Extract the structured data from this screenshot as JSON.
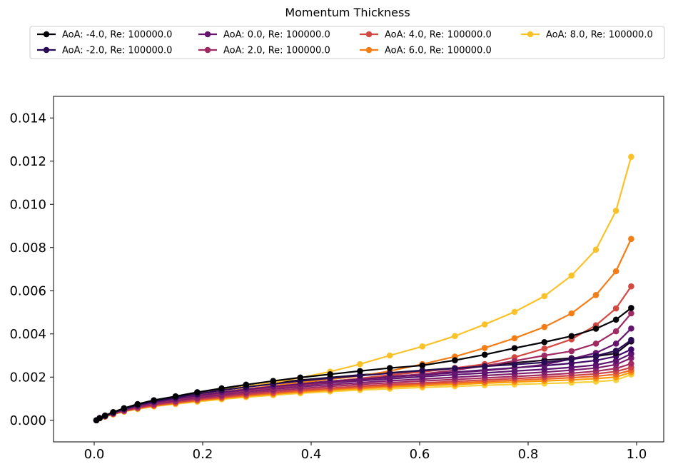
{
  "chart_data": {
    "type": "line",
    "title": "Momentum Thickness",
    "xlabel": "",
    "ylabel": "",
    "xlim": [
      -0.075,
      1.05
    ],
    "ylim": [
      -0.001,
      0.015
    ],
    "xticks": [
      "0.0",
      "0.2",
      "0.4",
      "0.6",
      "0.8",
      "1.0"
    ],
    "yticks": [
      "0.000",
      "0.002",
      "0.004",
      "0.006",
      "0.008",
      "0.010",
      "0.012",
      "0.014"
    ],
    "grid": false,
    "legend_position": "top-center, 4 columns",
    "x": [
      0.004,
      0.01,
      0.02,
      0.035,
      0.055,
      0.08,
      0.11,
      0.15,
      0.19,
      0.235,
      0.28,
      0.33,
      0.38,
      0.435,
      0.49,
      0.545,
      0.605,
      0.665,
      0.72,
      0.775,
      0.83,
      0.88,
      0.925,
      0.962,
      0.99
    ],
    "series": [
      {
        "name": "AoA: -4.0, Re: 100000.0",
        "color": "#000004",
        "values": [
          0.0,
          0.0001,
          0.00022,
          0.00038,
          0.00056,
          0.00075,
          0.00093,
          0.00111,
          0.0013,
          0.00148,
          0.00165,
          0.00182,
          0.00198,
          0.00213,
          0.00228,
          0.00242,
          0.00254,
          0.00278,
          0.00304,
          0.00334,
          0.00362,
          0.0039,
          0.00424,
          0.00466,
          0.0052
        ]
      },
      {
        "name": "AoA: -2.0, Re: 100000.0",
        "color": "#280b53",
        "values": [
          0.0,
          0.0001,
          0.00021,
          0.00036,
          0.00053,
          0.00071,
          0.00088,
          0.00105,
          0.00122,
          0.00139,
          0.00154,
          0.00168,
          0.00182,
          0.00195,
          0.00207,
          0.00218,
          0.0023,
          0.0024,
          0.0025,
          0.00258,
          0.00268,
          0.00282,
          0.00298,
          0.00322,
          0.00372
        ]
      },
      {
        "name": "AoA: 0.0, Re: 100000.0",
        "color": "#65156e",
        "values": [
          0.0,
          0.0001,
          0.0002,
          0.00034,
          0.0005,
          0.00067,
          0.00083,
          0.00099,
          0.00114,
          0.00129,
          0.00143,
          0.00156,
          0.00168,
          0.00179,
          0.0019,
          0.002,
          0.0021,
          0.0022,
          0.0023,
          0.00242,
          0.00258,
          0.00284,
          0.00312,
          0.00355,
          0.00425
        ]
      },
      {
        "name": "AoA: 2.0, Re: 100000.0",
        "color": "#9f2a63",
        "values": [
          0.0,
          0.0001,
          0.0002,
          0.00033,
          0.00048,
          0.00064,
          0.0008,
          0.00095,
          0.0011,
          0.00124,
          0.00137,
          0.0015,
          0.00163,
          0.00176,
          0.00189,
          0.002,
          0.00214,
          0.00232,
          0.00252,
          0.00275,
          0.003,
          0.0032,
          0.00355,
          0.00412,
          0.00495
        ]
      },
      {
        "name": "AoA: 4.0, Re: 100000.0",
        "color": "#d44842",
        "values": [
          0.0,
          0.0001,
          0.0002,
          0.00033,
          0.00048,
          0.00064,
          0.0008,
          0.00096,
          0.00111,
          0.00126,
          0.0014,
          0.00154,
          0.00167,
          0.0018,
          0.00194,
          0.0021,
          0.00224,
          0.00242,
          0.0026,
          0.00292,
          0.00332,
          0.00375,
          0.0044,
          0.00518,
          0.0062
        ]
      },
      {
        "name": "AoA: 6.0, Re: 100000.0",
        "color": "#f57d15",
        "values": [
          0.0,
          0.0001,
          0.0002,
          0.00034,
          0.0005,
          0.00066,
          0.00083,
          0.00099,
          0.00115,
          0.0013,
          0.00145,
          0.0016,
          0.00175,
          0.0019,
          0.00205,
          0.00228,
          0.0026,
          0.00295,
          0.00335,
          0.0038,
          0.00432,
          0.00495,
          0.0058,
          0.0069,
          0.0084
        ]
      },
      {
        "name": "AoA: 8.0, Re: 100000.0",
        "color": "#fac228",
        "values": [
          0.0,
          0.0001,
          0.0002,
          0.00035,
          0.00052,
          0.00069,
          0.00087,
          0.00105,
          0.00122,
          0.0014,
          0.00157,
          0.00174,
          0.00197,
          0.00225,
          0.0026,
          0.003,
          0.00342,
          0.0039,
          0.00444,
          0.00502,
          0.00575,
          0.0067,
          0.0079,
          0.0097,
          0.0122
        ]
      },
      {
        "name": "",
        "color": "#16071c",
        "values": [
          0.0,
          0.0001,
          0.00021,
          0.00037,
          0.00054,
          0.00073,
          0.0009,
          0.00107,
          0.00125,
          0.00142,
          0.00158,
          0.00173,
          0.00186,
          0.00198,
          0.0021,
          0.0022,
          0.00231,
          0.00242,
          0.00254,
          0.00266,
          0.00278,
          0.00288,
          0.00296,
          0.0031,
          0.00365
        ]
      },
      {
        "name": "",
        "color": "#420a68",
        "values": [
          0.0,
          0.0001,
          0.0002,
          0.00035,
          0.00051,
          0.00069,
          0.00085,
          0.00101,
          0.00117,
          0.00131,
          0.00145,
          0.00158,
          0.0017,
          0.00181,
          0.00192,
          0.00203,
          0.00213,
          0.00223,
          0.00233,
          0.00243,
          0.00253,
          0.00264,
          0.00277,
          0.00296,
          0.00328
        ]
      },
      {
        "name": "",
        "color": "#5c126e",
        "values": [
          0.0,
          0.0001,
          0.0002,
          0.00034,
          0.00049,
          0.00066,
          0.00081,
          0.00096,
          0.00111,
          0.00125,
          0.00138,
          0.00151,
          0.00162,
          0.00173,
          0.00183,
          0.00192,
          0.00202,
          0.00211,
          0.00219,
          0.00228,
          0.00236,
          0.00245,
          0.00256,
          0.00275,
          0.00308
        ]
      },
      {
        "name": "",
        "color": "#7e1e6c",
        "values": [
          0.0,
          0.0001,
          0.00019,
          0.00032,
          0.00047,
          0.00063,
          0.00078,
          0.00092,
          0.00106,
          0.00119,
          0.00132,
          0.00144,
          0.00155,
          0.00165,
          0.00174,
          0.00183,
          0.00191,
          0.00199,
          0.00207,
          0.00215,
          0.00223,
          0.00232,
          0.00242,
          0.00258,
          0.00288
        ]
      },
      {
        "name": "",
        "color": "#a52c60",
        "values": [
          0.0,
          0.0001,
          0.00019,
          0.00031,
          0.00045,
          0.0006,
          0.00074,
          0.00088,
          0.00101,
          0.00113,
          0.00125,
          0.00137,
          0.00147,
          0.00157,
          0.00166,
          0.00174,
          0.00182,
          0.00189,
          0.00196,
          0.00203,
          0.0021,
          0.00218,
          0.00227,
          0.0024,
          0.00262
        ]
      },
      {
        "name": "",
        "color": "#cf4446",
        "values": [
          0.0,
          0.0001,
          0.00018,
          0.0003,
          0.00043,
          0.00057,
          0.0007,
          0.00083,
          0.00096,
          0.00108,
          0.00119,
          0.0013,
          0.0014,
          0.00149,
          0.00158,
          0.00166,
          0.00173,
          0.0018,
          0.00187,
          0.00193,
          0.002,
          0.00207,
          0.00215,
          0.00226,
          0.00245
        ]
      },
      {
        "name": "",
        "color": "#ed6925",
        "values": [
          0.0,
          0.0001,
          0.00018,
          0.00029,
          0.00042,
          0.00055,
          0.00068,
          0.0008,
          0.00092,
          0.00104,
          0.00115,
          0.00125,
          0.00135,
          0.00144,
          0.00152,
          0.0016,
          0.00167,
          0.00173,
          0.00179,
          0.00185,
          0.00191,
          0.00197,
          0.00204,
          0.00213,
          0.00232
        ]
      },
      {
        "name": "",
        "color": "#fb9b06",
        "values": [
          0.0,
          9e-05,
          0.00017,
          0.00028,
          0.00041,
          0.00054,
          0.00066,
          0.00078,
          0.0009,
          0.00101,
          0.00111,
          0.00121,
          0.0013,
          0.00139,
          0.00147,
          0.00154,
          0.0016,
          0.00166,
          0.00172,
          0.00177,
          0.00182,
          0.00187,
          0.00193,
          0.002,
          0.00222
        ]
      },
      {
        "name": "",
        "color": "#f7d13d",
        "values": [
          0.0,
          9e-05,
          0.00017,
          0.00027,
          0.0004,
          0.00052,
          0.00064,
          0.00075,
          0.00086,
          0.00097,
          0.00107,
          0.00116,
          0.00125,
          0.00133,
          0.0014,
          0.00146,
          0.00152,
          0.00157,
          0.00162,
          0.00166,
          0.0017,
          0.00174,
          0.00179,
          0.00186,
          0.00212
        ]
      }
    ]
  }
}
